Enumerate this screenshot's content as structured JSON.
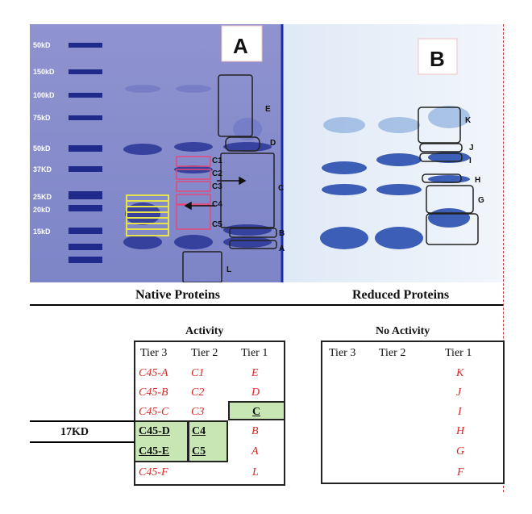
{
  "panel_a_label": "A",
  "panel_b_label": "B",
  "markers": [
    "50kD",
    "150kD",
    "100kD",
    "75kD",
    "50kD",
    "37KD",
    "25KD",
    "20kD",
    "15kD"
  ],
  "panel_a_bands": [
    "E",
    "D",
    "C1",
    "C2",
    "C3",
    "C",
    "C4",
    "C5",
    "B",
    "A",
    "L"
  ],
  "panel_b_bands": [
    "K",
    "J",
    "I",
    "H",
    "G"
  ],
  "native_caption": "Native Proteins",
  "reduced_caption": "Reduced Proteins",
  "activity_title": "Activity",
  "no_activity_title": "No Activity",
  "headers_left": [
    "Tier 3",
    "Tier 2",
    "Tier 1"
  ],
  "headers_right": [
    "Tier 3",
    "Tier 2",
    "Tier 1"
  ],
  "rows_left": [
    [
      "C45-A",
      "C1",
      "E"
    ],
    [
      "C45-B",
      "C2",
      "D"
    ],
    [
      "C45-C",
      "C3",
      "C"
    ],
    [
      "C45-D",
      "C4",
      "B"
    ],
    [
      "C45-E",
      "C5",
      "A"
    ],
    [
      "C45-F",
      "",
      "L"
    ]
  ],
  "rows_right": [
    "K",
    "J",
    "I",
    "H",
    "G",
    "F"
  ],
  "side_label": "17KD"
}
